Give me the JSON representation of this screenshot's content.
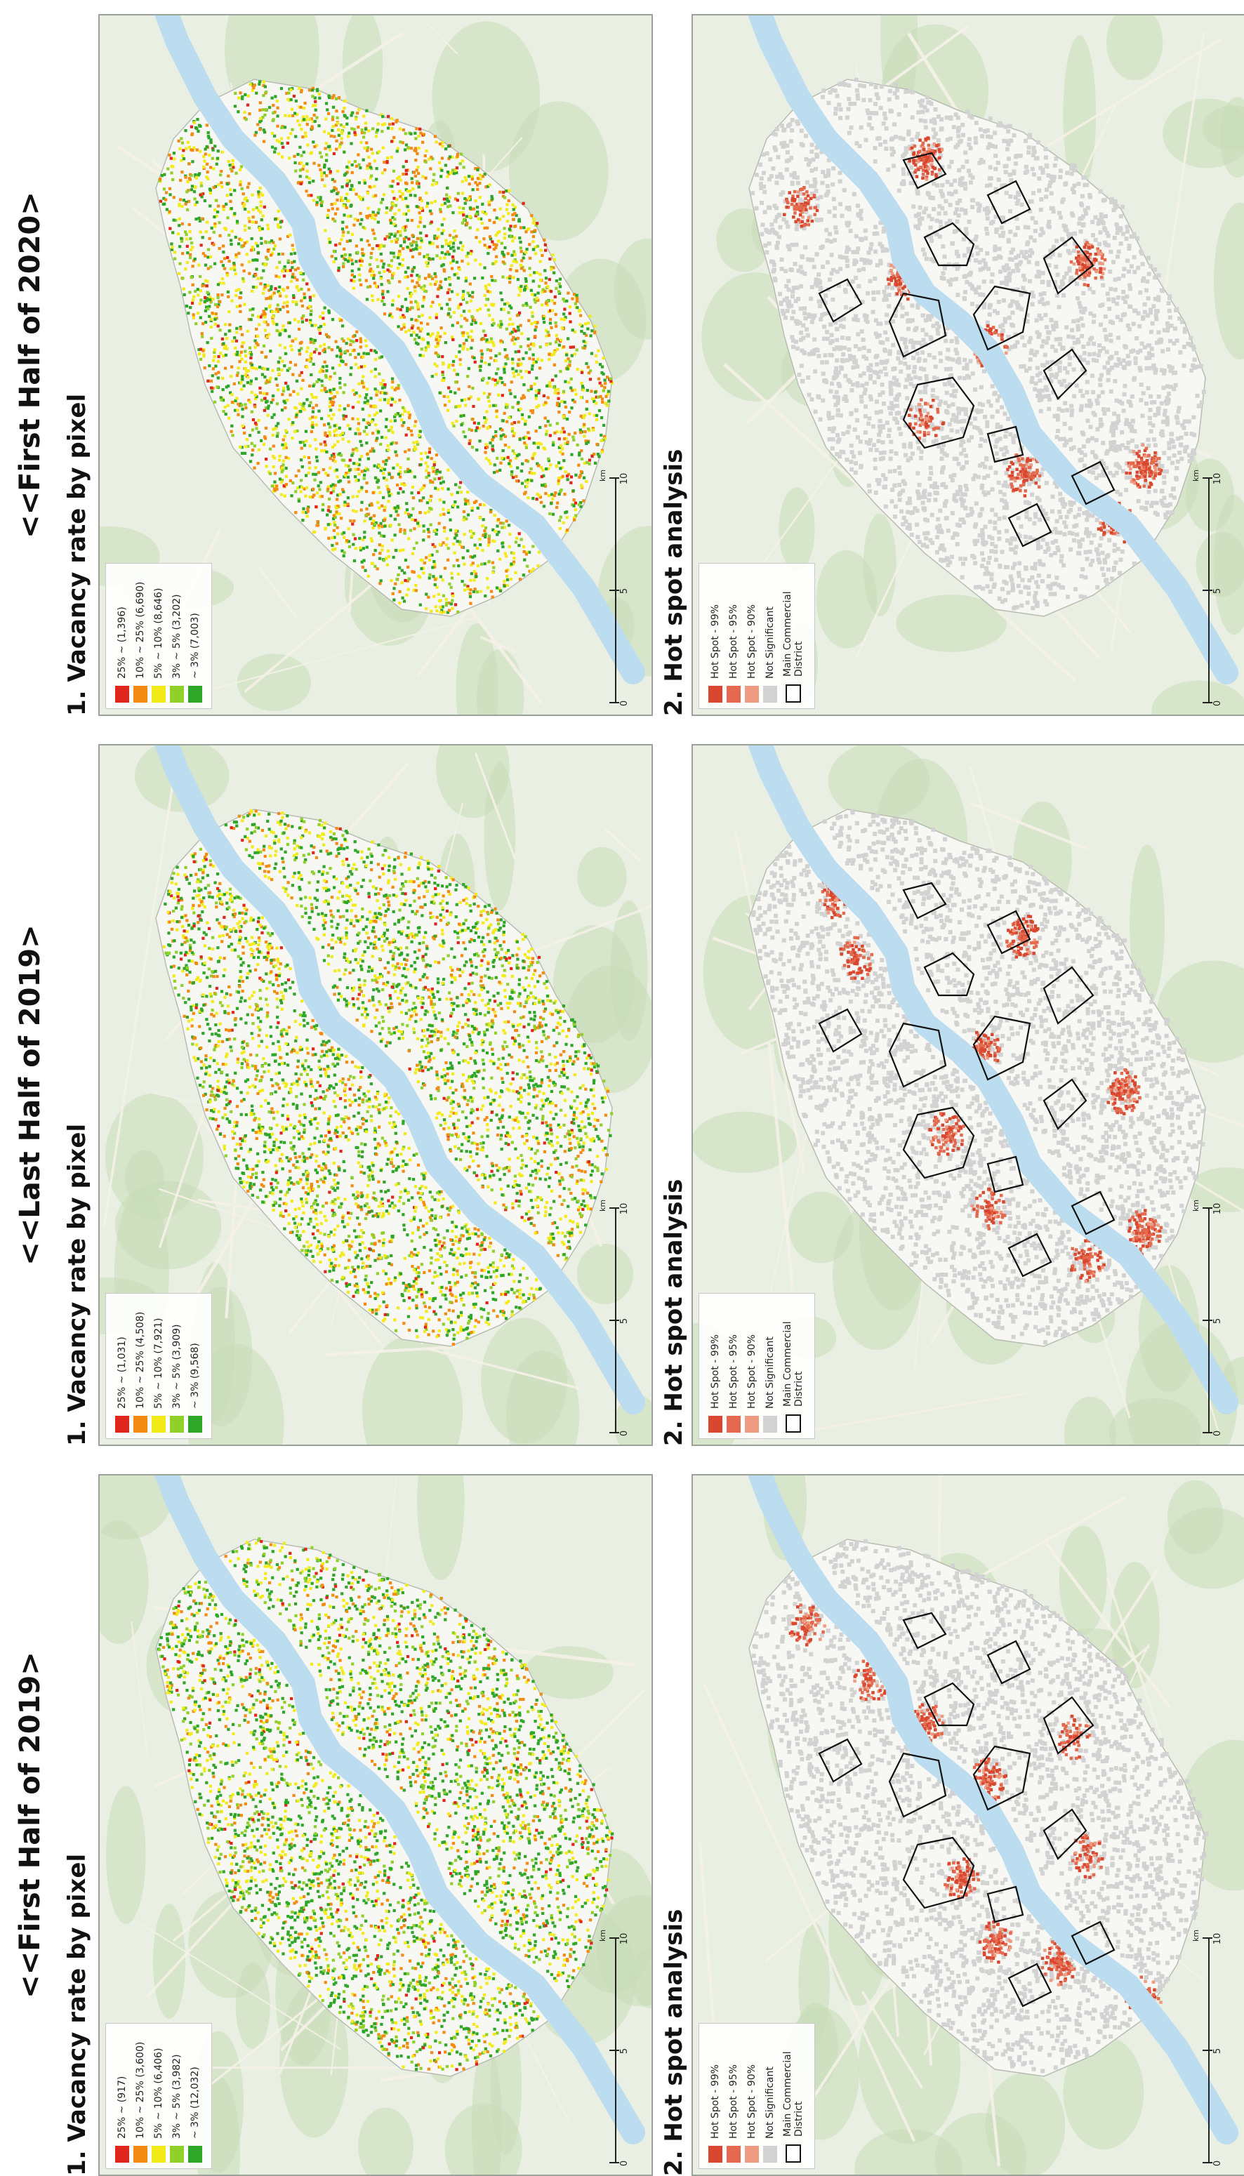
{
  "periods": [
    {
      "title": "<<First Half of 2019>",
      "vacancy": {
        "title": "1. Vacancy rate by pixel",
        "legend": [
          {
            "label": "25% ~ (917)",
            "color": "#e0251b"
          },
          {
            "label": "10% ~ 25% (3,600)",
            "color": "#f38a12"
          },
          {
            "label": "5% ~ 10% (6,406)",
            "color": "#f3ea1a"
          },
          {
            "label": "3% ~ 5% (3,982)",
            "color": "#8fd12a"
          },
          {
            "label": "~ 3% (12,032)",
            "color": "#2ea628"
          }
        ]
      },
      "hotspot": {
        "title": "2. Hot spot analysis",
        "legend": [
          {
            "label": "Hot Spot - 99%",
            "color": "#d9472f"
          },
          {
            "label": "Hot Spot - 95%",
            "color": "#e46a4f"
          },
          {
            "label": "Hot Spot - 90%",
            "color": "#ef9b82"
          },
          {
            "label": "Not Significant",
            "color": "#d2d2d2"
          }
        ],
        "district_label": "Main Commercial District"
      }
    },
    {
      "title": "<<Last Half of 2019>",
      "vacancy": {
        "title": "1. Vacancy rate by pixel",
        "legend": [
          {
            "label": "25% ~ (1,031)",
            "color": "#e0251b"
          },
          {
            "label": "10% ~ 25% (4,508)",
            "color": "#f38a12"
          },
          {
            "label": "5% ~ 10% (7,921)",
            "color": "#f3ea1a"
          },
          {
            "label": "3% ~ 5% (3,909)",
            "color": "#8fd12a"
          },
          {
            "label": "~ 3% (9,568)",
            "color": "#2ea628"
          }
        ]
      },
      "hotspot": {
        "title": "2. Hot spot analysis",
        "legend": [
          {
            "label": "Hot Spot - 99%",
            "color": "#d9472f"
          },
          {
            "label": "Hot Spot - 95%",
            "color": "#e46a4f"
          },
          {
            "label": "Hot Spot - 90%",
            "color": "#ef9b82"
          },
          {
            "label": "Not Significant",
            "color": "#d2d2d2"
          }
        ],
        "district_label": "Main Commercial District"
      }
    },
    {
      "title": "<<First Half of 2020>",
      "vacancy": {
        "title": "1. Vacancy rate by pixel",
        "legend": [
          {
            "label": "25% ~ (1,396)",
            "color": "#e0251b"
          },
          {
            "label": "10% ~ 25% (6,690)",
            "color": "#f38a12"
          },
          {
            "label": "5% ~ 10% (8,646)",
            "color": "#f3ea1a"
          },
          {
            "label": "3% ~ 5% (3,202)",
            "color": "#8fd12a"
          },
          {
            "label": "~ 3% (7,003)",
            "color": "#2ea628"
          }
        ]
      },
      "hotspot": {
        "title": "2. Hot spot analysis",
        "legend": [
          {
            "label": "Hot Spot - 99%",
            "color": "#d9472f"
          },
          {
            "label": "Hot Spot - 95%",
            "color": "#e46a4f"
          },
          {
            "label": "Hot Spot - 90%",
            "color": "#ef9b82"
          },
          {
            "label": "Not Significant",
            "color": "#d2d2d2"
          }
        ],
        "district_label": "Main Commercial District"
      }
    }
  ],
  "scale": {
    "ticks": [
      "0",
      "5",
      "10"
    ],
    "unit": "km"
  },
  "colors": {
    "basemap": "#e9efe3",
    "forest": "#c9ddb8",
    "river": "#bcdcef",
    "road": "#f6f2e8",
    "city_boundary": "#f7f7f3"
  }
}
